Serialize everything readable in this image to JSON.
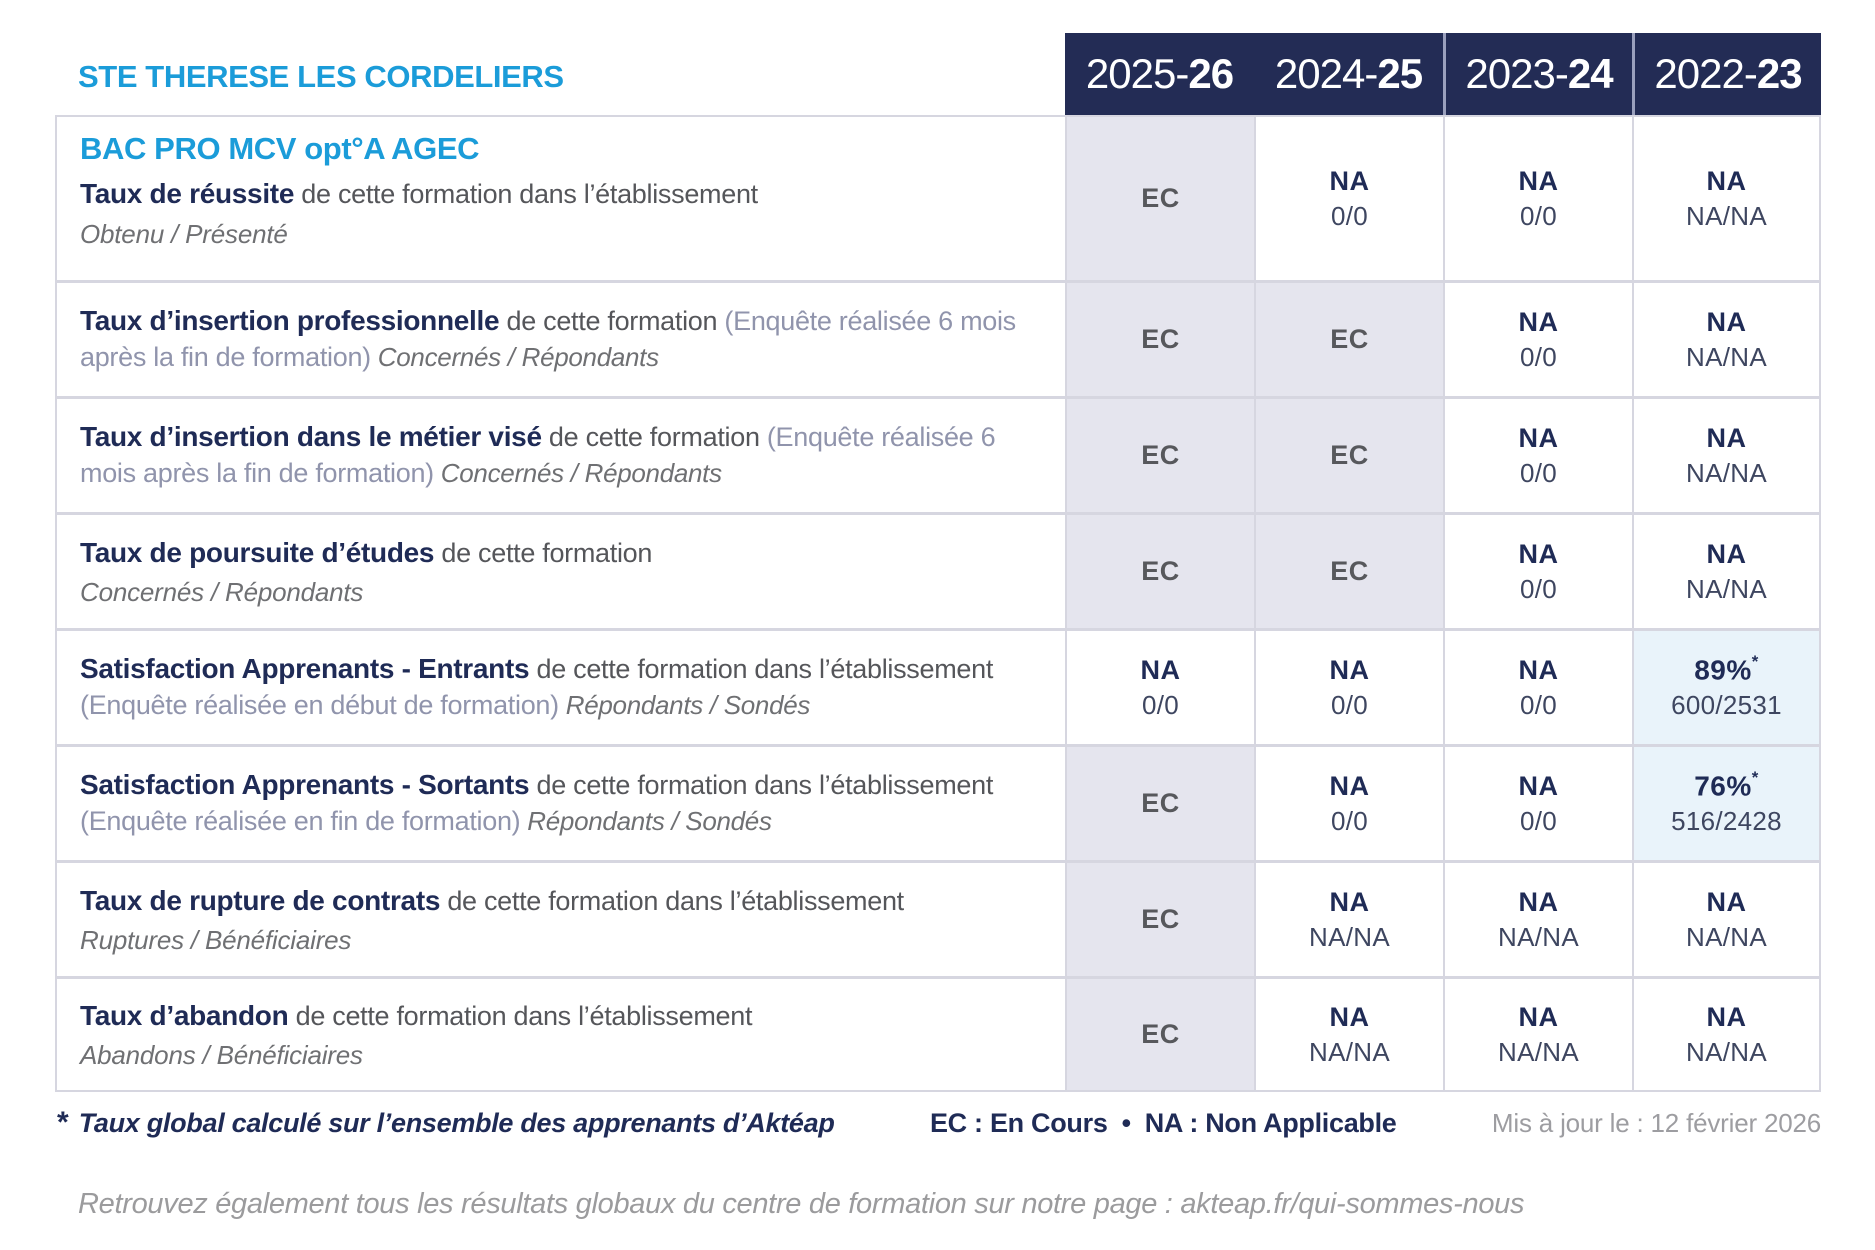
{
  "header": {
    "site_title": "STE THERESE LES CORDELIERS",
    "years": [
      {
        "pre": "2025-",
        "suf": "26"
      },
      {
        "pre": "2024-",
        "suf": "25"
      },
      {
        "pre": "2023-",
        "suf": "24"
      },
      {
        "pre": "2022-",
        "suf": "23"
      }
    ]
  },
  "table": {
    "rows": [
      {
        "program": "BAC PRO MCV opt°A AGEC",
        "bold": "Taux de réussite",
        "normal": " de cette formation dans l’établissement",
        "paren": "",
        "inline_italic": "",
        "sub": "Obtenu / Présenté",
        "values": [
          {
            "status": "ec",
            "main": "EC",
            "sub": "",
            "star": ""
          },
          {
            "status": "na",
            "main": "NA",
            "sub": "0/0",
            "star": ""
          },
          {
            "status": "na",
            "main": "NA",
            "sub": "0/0",
            "star": ""
          },
          {
            "status": "na",
            "main": "NA",
            "sub": "NA/NA",
            "star": ""
          }
        ]
      },
      {
        "bold": "Taux d’insertion professionnelle",
        "normal": " de cette formation ",
        "paren": "(Enquête réalisée 6 mois après la fin de formation)",
        "inline_italic": " Concernés / Répondants",
        "sub": "",
        "values": [
          {
            "status": "ec",
            "main": "EC",
            "sub": "",
            "star": ""
          },
          {
            "status": "ec",
            "main": "EC",
            "sub": "",
            "star": ""
          },
          {
            "status": "na",
            "main": "NA",
            "sub": "0/0",
            "star": ""
          },
          {
            "status": "na",
            "main": "NA",
            "sub": "NA/NA",
            "star": ""
          }
        ]
      },
      {
        "bold": "Taux d’insertion dans le métier visé",
        "normal": " de cette formation ",
        "paren": "(Enquête réalisée 6 mois après la fin de formation)",
        "inline_italic": " Concernés / Répondants",
        "sub": "",
        "values": [
          {
            "status": "ec",
            "main": "EC",
            "sub": "",
            "star": ""
          },
          {
            "status": "ec",
            "main": "EC",
            "sub": "",
            "star": ""
          },
          {
            "status": "na",
            "main": "NA",
            "sub": "0/0",
            "star": ""
          },
          {
            "status": "na",
            "main": "NA",
            "sub": "NA/NA",
            "star": ""
          }
        ]
      },
      {
        "bold": "Taux de poursuite d’études",
        "normal": " de cette formation",
        "paren": "",
        "inline_italic": "",
        "sub": "Concernés / Répondants",
        "values": [
          {
            "status": "ec",
            "main": "EC",
            "sub": "",
            "star": ""
          },
          {
            "status": "ec",
            "main": "EC",
            "sub": "",
            "star": ""
          },
          {
            "status": "na",
            "main": "NA",
            "sub": "0/0",
            "star": ""
          },
          {
            "status": "na",
            "main": "NA",
            "sub": "NA/NA",
            "star": ""
          }
        ]
      },
      {
        "bold": "Satisfaction Apprenants - Entrants",
        "normal": " de cette formation dans l’établissement ",
        "paren": "(Enquête réalisée en début de formation)",
        "inline_italic": " Répondants / Sondés",
        "sub": "",
        "values": [
          {
            "status": "na",
            "main": "NA",
            "sub": "0/0",
            "star": ""
          },
          {
            "status": "na",
            "main": "NA",
            "sub": "0/0",
            "star": ""
          },
          {
            "status": "na",
            "main": "NA",
            "sub": "0/0",
            "star": ""
          },
          {
            "status": "pct",
            "main": "89%",
            "sub": "600/2531",
            "star": "*"
          }
        ]
      },
      {
        "bold": "Satisfaction Apprenants - Sortants",
        "normal": " de cette formation dans l’établissement ",
        "paren": "(Enquête réalisée en fin de formation)",
        "inline_italic": " Répondants / Sondés",
        "sub": "",
        "values": [
          {
            "status": "ec",
            "main": "EC",
            "sub": "",
            "star": ""
          },
          {
            "status": "na",
            "main": "NA",
            "sub": "0/0",
            "star": ""
          },
          {
            "status": "na",
            "main": "NA",
            "sub": "0/0",
            "star": ""
          },
          {
            "status": "pct",
            "main": "76%",
            "sub": "516/2428",
            "star": "*"
          }
        ]
      },
      {
        "bold": "Taux de rupture de contrats",
        "normal": " de cette formation dans l’établissement",
        "paren": "",
        "inline_italic": "",
        "sub": "Ruptures / Bénéficiaires",
        "values": [
          {
            "status": "ec",
            "main": "EC",
            "sub": "",
            "star": ""
          },
          {
            "status": "na",
            "main": "NA",
            "sub": "NA/NA",
            "star": ""
          },
          {
            "status": "na",
            "main": "NA",
            "sub": "NA/NA",
            "star": ""
          },
          {
            "status": "na",
            "main": "NA",
            "sub": "NA/NA",
            "star": ""
          }
        ]
      },
      {
        "bold": "Taux d’abandon",
        "normal": " de cette formation dans l’établissement",
        "paren": "",
        "inline_italic": "",
        "sub": "Abandons / Bénéficiaires",
        "values": [
          {
            "status": "ec",
            "main": "EC",
            "sub": "",
            "star": ""
          },
          {
            "status": "na",
            "main": "NA",
            "sub": "NA/NA",
            "star": ""
          },
          {
            "status": "na",
            "main": "NA",
            "sub": "NA/NA",
            "star": ""
          },
          {
            "status": "na",
            "main": "NA",
            "sub": "NA/NA",
            "star": ""
          }
        ]
      }
    ]
  },
  "footer": {
    "star": "*",
    "note": "Taux global calculé sur l’ensemble des apprenants d’Aktéap",
    "legend_ec": "EC : En Cours",
    "legend_sep": "•",
    "legend_na": "NA : Non Applicable",
    "updated": "Mis à jour le : 12 février 2026",
    "bottom_note": "Retrouvez également tous les résultats globaux du centre de formation sur notre page : akteap.fr/qui-sommes-nous"
  },
  "colors": {
    "accent_blue": "#1b9cd9",
    "navy_text": "#1f2b56",
    "header_bg": "#232c55",
    "ec_cell_bg": "#e5e5ee",
    "highlight_cell_bg": "#e9f3fa",
    "grid_line": "#d6d6e0"
  }
}
